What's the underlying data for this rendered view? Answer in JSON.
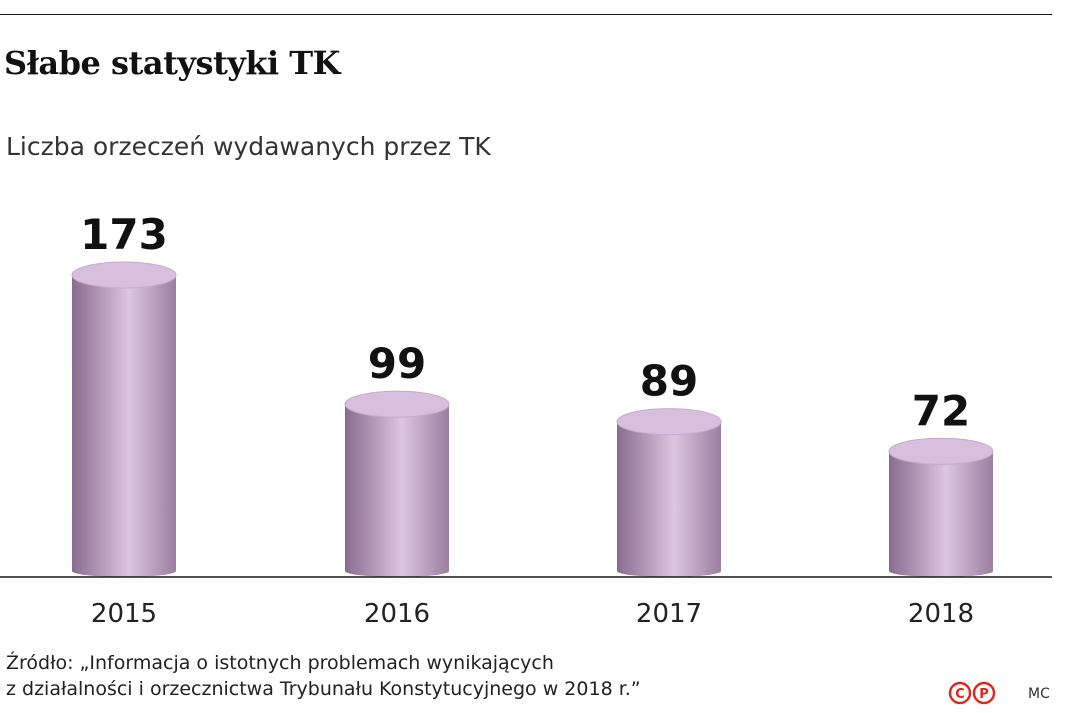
{
  "header": {
    "title": "Słabe statystyki TK",
    "subtitle": "Liczba orzeczeń wydawanych przez TK"
  },
  "chart_data": {
    "type": "bar",
    "style": "3d-cylinder",
    "categories": [
      "2015",
      "2016",
      "2017",
      "2018"
    ],
    "values": [
      173,
      99,
      89,
      72
    ],
    "value_labels": [
      "173",
      "99",
      "89",
      "72"
    ],
    "title": "Słabe statystyki TK",
    "subtitle": "Liczba orzeczeń wydawanych przez TK",
    "xlabel": "",
    "ylabel": "",
    "ylim": [
      0,
      180
    ],
    "grid": false,
    "legend": "none",
    "colors": {
      "bar_light": "#dcc6e0",
      "bar_dark": "#8e6e94",
      "bar_top": "#d8bfdd"
    }
  },
  "footer": {
    "source_line1": "Źródło: „Informacja o istotnych problemach wynikających",
    "source_line2": "z działalności i orzecznictwa Trybunału Konstytucyjnego w 2018 r.”",
    "author": "MC",
    "logo_color": "#e2231a",
    "logo_letters": [
      "C",
      "P"
    ]
  }
}
